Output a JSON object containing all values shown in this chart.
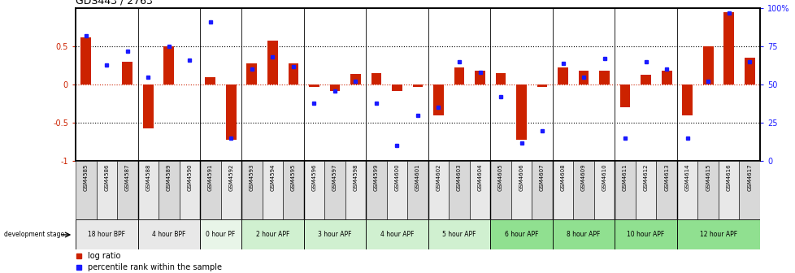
{
  "title": "GDS443 / 2763",
  "samples": [
    "GSM4585",
    "GSM4586",
    "GSM4587",
    "GSM4588",
    "GSM4589",
    "GSM4590",
    "GSM4591",
    "GSM4592",
    "GSM4593",
    "GSM4594",
    "GSM4595",
    "GSM4596",
    "GSM4597",
    "GSM4598",
    "GSM4599",
    "GSM4600",
    "GSM4601",
    "GSM4602",
    "GSM4603",
    "GSM4604",
    "GSM4605",
    "GSM4606",
    "GSM4607",
    "GSM4608",
    "GSM4609",
    "GSM4610",
    "GSM4611",
    "GSM4612",
    "GSM4613",
    "GSM4614",
    "GSM4615",
    "GSM4616",
    "GSM4617"
  ],
  "log_ratio": [
    0.62,
    0.0,
    0.3,
    -0.57,
    0.5,
    0.0,
    0.1,
    -0.72,
    0.28,
    0.58,
    0.28,
    -0.03,
    -0.08,
    0.14,
    0.15,
    -0.08,
    -0.03,
    -0.4,
    0.22,
    0.18,
    0.15,
    -0.72,
    -0.03,
    0.22,
    0.18,
    0.18,
    -0.3,
    0.13,
    0.18,
    -0.4,
    0.5,
    0.95,
    0.35
  ],
  "percentile": [
    82,
    63,
    72,
    55,
    75,
    66,
    91,
    15,
    60,
    68,
    62,
    38,
    46,
    52,
    38,
    10,
    30,
    35,
    65,
    58,
    42,
    12,
    20,
    64,
    55,
    67,
    15,
    65,
    60,
    15,
    52,
    97,
    65
  ],
  "stages": [
    {
      "label": "18 hour BPF",
      "start": 0,
      "end": 3,
      "color": "#e8e8e8"
    },
    {
      "label": "4 hour BPF",
      "start": 3,
      "end": 6,
      "color": "#e8e8e8"
    },
    {
      "label": "0 hour PF",
      "start": 6,
      "end": 8,
      "color": "#e8f5e8"
    },
    {
      "label": "2 hour APF",
      "start": 8,
      "end": 11,
      "color": "#d0f0d0"
    },
    {
      "label": "3 hour APF",
      "start": 11,
      "end": 14,
      "color": "#d0f0d0"
    },
    {
      "label": "4 hour APF",
      "start": 14,
      "end": 17,
      "color": "#d0f0d0"
    },
    {
      "label": "5 hour APF",
      "start": 17,
      "end": 20,
      "color": "#d0f0d0"
    },
    {
      "label": "6 hour APF",
      "start": 20,
      "end": 23,
      "color": "#90e090"
    },
    {
      "label": "8 hour APF",
      "start": 23,
      "end": 26,
      "color": "#90e090"
    },
    {
      "label": "10 hour APF",
      "start": 26,
      "end": 29,
      "color": "#90e090"
    },
    {
      "label": "12 hour APF",
      "start": 29,
      "end": 33,
      "color": "#90e090"
    }
  ],
  "bar_color": "#cc2200",
  "dot_color": "#1a1aff",
  "zero_line_color": "#cc2200",
  "grid_color": "#000000",
  "ylim": [
    -1.0,
    1.0
  ],
  "yticks_left": [
    -1.0,
    -0.5,
    0.0,
    0.5
  ],
  "ytick_labels_left": [
    "-1",
    "-0.5",
    "0",
    "0.5"
  ],
  "yticks_right_scaled": [
    -1.0,
    -0.5,
    0.0,
    0.5,
    1.0
  ],
  "ytick_labels_right": [
    "0",
    "25",
    "50",
    "75",
    "100%"
  ],
  "hlines": [
    -0.5,
    0.5
  ],
  "background_color": "#ffffff"
}
